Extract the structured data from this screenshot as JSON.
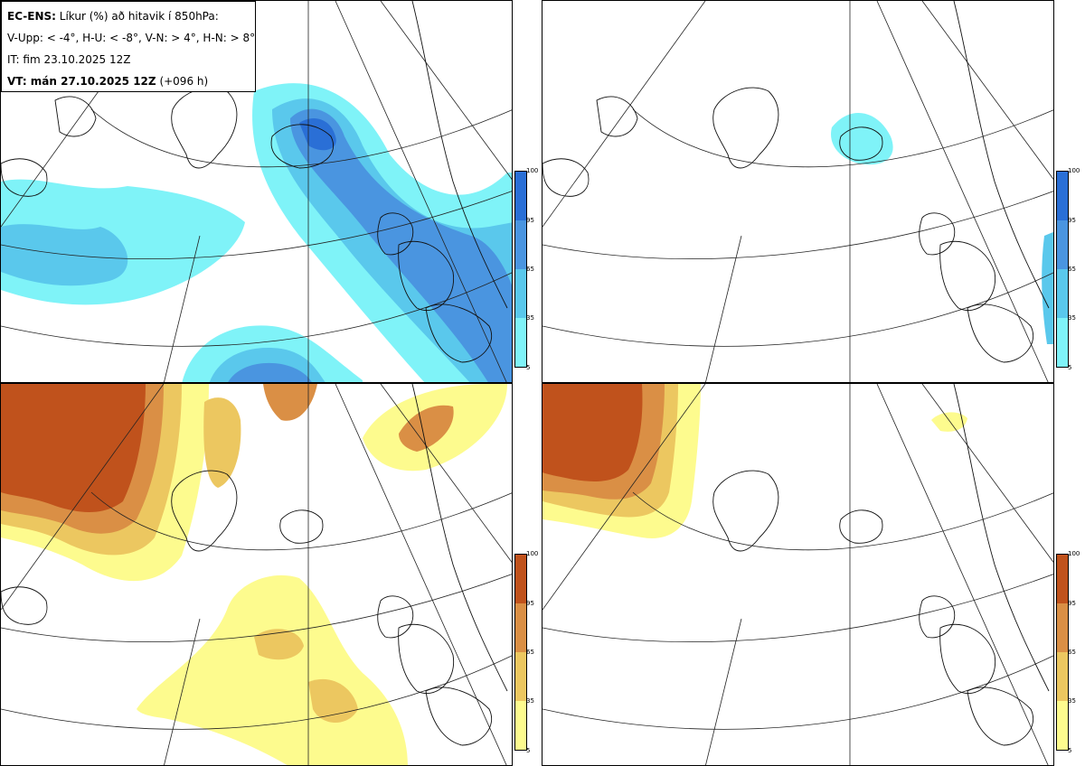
{
  "header": {
    "model_label": "EC-ENS:",
    "title_text": "Líkur (%) að hitavik í 850hPa:",
    "categories_line": "V-Upp: < -4°, H-U: < -8°, V-N: > 4°, H-N: > 8°",
    "init_time": "IT: fim 23.10.2025 12Z",
    "valid_label": "VT: mán 27.10.2025 12Z",
    "lead_time": "(+096 h)"
  },
  "colorbars": {
    "cold": {
      "ticks": [
        "100",
        "95",
        "65",
        "35",
        "5"
      ],
      "colors": [
        "#2a6fd6",
        "#4a95e0",
        "#5ac8ec",
        "#7ff3f8"
      ]
    },
    "warm": {
      "ticks": [
        "100",
        "95",
        "65",
        "35",
        "5"
      ],
      "colors": [
        "#c0521c",
        "#da8f45",
        "#ecc760",
        "#fdfb8e"
      ]
    }
  },
  "panels": [
    {
      "id": "upper-left",
      "quantity": "V-Upp",
      "palette": "cold"
    },
    {
      "id": "upper-right",
      "quantity": "H-U",
      "palette": "cold"
    },
    {
      "id": "lower-left",
      "quantity": "V-N",
      "palette": "warm"
    },
    {
      "id": "lower-right",
      "quantity": "H-N",
      "palette": "warm"
    }
  ]
}
